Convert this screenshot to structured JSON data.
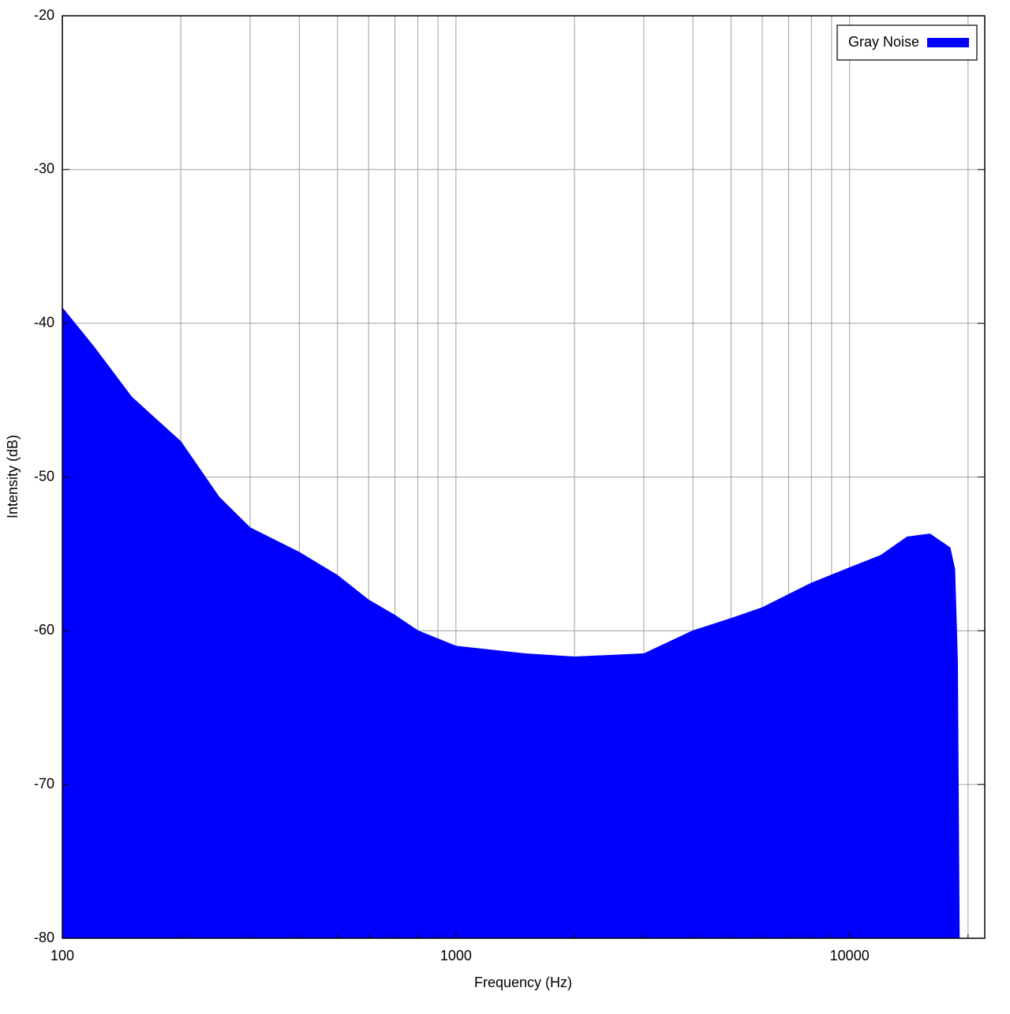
{
  "chart_data": {
    "type": "area",
    "x_label": "Frequency (Hz)",
    "y_label": "Intensity (dB)",
    "x_log": true,
    "xlim": [
      100,
      22050
    ],
    "xticks": [
      100,
      1000,
      10000
    ],
    "x_minor_ticks": [
      200,
      300,
      400,
      500,
      600,
      700,
      800,
      900,
      2000,
      3000,
      4000,
      5000,
      6000,
      7000,
      8000,
      9000,
      20000
    ],
    "ylim": [
      -80,
      -20
    ],
    "yticks": [
      -80,
      -70,
      -60,
      -50,
      -40,
      -30,
      -20
    ],
    "grid": true,
    "legend": "upper right",
    "series": [
      {
        "name": "Gray Noise",
        "color": "#0000ff",
        "x": [
          100,
          120,
          150,
          200,
          250,
          300,
          400,
          500,
          600,
          700,
          800,
          1000,
          1500,
          2000,
          3000,
          4000,
          5000,
          6000,
          8000,
          10000,
          12000,
          14000,
          16000,
          18000,
          18500,
          18800,
          19000
        ],
        "values": [
          -39,
          -41.5,
          -44.8,
          -47.7,
          -51.3,
          -53.3,
          -54.9,
          -56.4,
          -58,
          -59,
          -60,
          -61,
          -61.5,
          -61.7,
          -61.5,
          -60,
          -59.2,
          -58.5,
          -56.9,
          -55.9,
          -55.1,
          -53.9,
          -53.7,
          -54.6,
          -56,
          -62,
          -80
        ]
      }
    ]
  }
}
